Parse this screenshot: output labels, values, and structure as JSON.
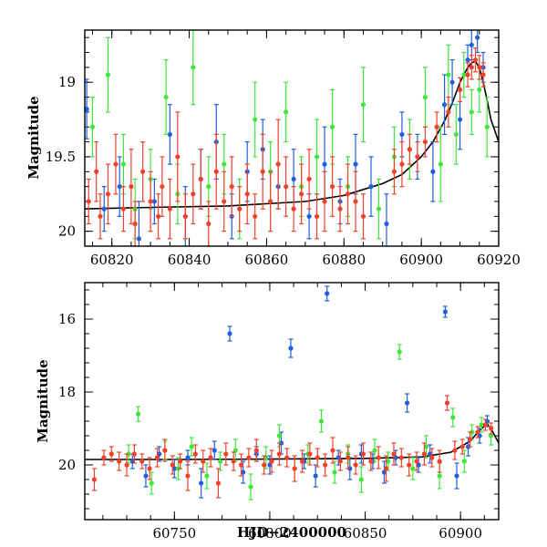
{
  "chart_data": [
    {
      "type": "scatter",
      "title": "",
      "xlabel": "",
      "ylabel": "Magnitude",
      "xlim": [
        60813,
        60920
      ],
      "ylim": [
        20.1,
        18.65
      ],
      "y_inverted": true,
      "x_ticks": [
        60820,
        60840,
        60860,
        60880,
        60900,
        60920
      ],
      "x_ticklabels": [
        "60820",
        "60840",
        "60860",
        "60880",
        "60900",
        "60920"
      ],
      "y_ticks": [
        19,
        19.5,
        20
      ],
      "y_ticklabels": [
        "19",
        "19.5",
        "20"
      ],
      "grid": false,
      "legend": "none",
      "colors": {
        "blue": "#1f5fe0",
        "green": "#3ee83a",
        "red": "#f2412a",
        "model": "#000000"
      },
      "model_curve": {
        "x": [
          60813,
          60830,
          60850,
          60870,
          60880,
          60890,
          60895,
          60900,
          60903,
          60906,
          60908,
          60910,
          60912,
          60913,
          60914,
          60915,
          60916,
          60917,
          60918,
          60920
        ],
        "y": [
          19.85,
          19.84,
          19.83,
          19.8,
          19.76,
          19.68,
          19.62,
          19.5,
          19.4,
          19.26,
          19.14,
          19.0,
          18.9,
          18.87,
          18.86,
          18.9,
          19.0,
          19.12,
          19.25,
          19.4
        ]
      },
      "series": [
        {
          "color": "blue",
          "x": [
            60813.5,
            60818,
            60822,
            60827,
            60831,
            60835,
            60839,
            60843,
            60847,
            60851,
            60855,
            60859,
            60863,
            60867,
            60871,
            60875,
            60879,
            60883,
            60887,
            60891,
            60895,
            60899,
            60903,
            60906,
            60908,
            60910,
            60912,
            60913,
            60914.5,
            60916
          ],
          "y": [
            19.18,
            19.85,
            19.7,
            20.05,
            19.8,
            19.35,
            19.9,
            19.65,
            19.4,
            19.9,
            19.6,
            19.45,
            19.7,
            19.65,
            19.9,
            19.55,
            19.8,
            19.55,
            19.7,
            19.95,
            19.35,
            19.5,
            19.6,
            19.15,
            19.0,
            19.25,
            18.85,
            18.75,
            18.7,
            18.9
          ],
          "err": [
            0.2,
            0.15,
            0.2,
            0.25,
            0.15,
            0.2,
            0.2,
            0.2,
            0.25,
            0.15,
            0.2,
            0.2,
            0.15,
            0.2,
            0.15,
            0.25,
            0.15,
            0.2,
            0.2,
            0.2,
            0.15,
            0.15,
            0.2,
            0.2,
            0.15,
            0.2,
            0.1,
            0.1,
            0.1,
            0.1
          ]
        },
        {
          "color": "green",
          "x": [
            60815,
            60819,
            60823,
            60826,
            60830,
            60834,
            60837,
            60841,
            60845,
            60849,
            60853,
            60857,
            60861,
            60865,
            60869,
            60873,
            60877,
            60881,
            60885,
            60889,
            60893,
            60897,
            60901,
            60905,
            60907,
            60909,
            60911,
            60913,
            60915,
            60917
          ],
          "y": [
            19.3,
            18.95,
            19.55,
            19.85,
            19.65,
            19.1,
            19.75,
            18.9,
            19.7,
            19.55,
            19.85,
            19.25,
            19.6,
            19.2,
            19.7,
            19.5,
            19.3,
            19.7,
            19.15,
            19.85,
            19.5,
            19.45,
            19.1,
            19.55,
            18.95,
            19.35,
            18.95,
            19.2,
            19.05,
            19.3
          ],
          "err": [
            0.2,
            0.25,
            0.2,
            0.2,
            0.2,
            0.25,
            0.2,
            0.25,
            0.2,
            0.2,
            0.2,
            0.25,
            0.2,
            0.2,
            0.2,
            0.25,
            0.25,
            0.2,
            0.25,
            0.2,
            0.2,
            0.2,
            0.2,
            0.25,
            0.2,
            0.2,
            0.15,
            0.15,
            0.15,
            0.2
          ]
        },
        {
          "color": "red",
          "x": [
            60814,
            60816,
            60817,
            60819,
            60821,
            60823,
            60825,
            60826,
            60828,
            60830,
            60832,
            60833,
            60835,
            60837,
            60839,
            60841,
            60843,
            60845,
            60847,
            60849,
            60851,
            60853,
            60855,
            60857,
            60859,
            60861,
            60863,
            60865,
            60867,
            60869,
            60871,
            60873,
            60875,
            60877,
            60879,
            60881,
            60883,
            60885,
            60893,
            60895,
            60897,
            60899,
            60901,
            60904,
            60907,
            60910,
            60912,
            60913,
            60914,
            60915,
            60916
          ],
          "y": [
            19.8,
            19.6,
            19.9,
            19.75,
            19.55,
            19.85,
            19.7,
            19.95,
            19.6,
            19.8,
            19.9,
            19.7,
            19.85,
            19.5,
            19.9,
            19.75,
            19.65,
            19.95,
            19.6,
            19.8,
            19.7,
            19.85,
            19.75,
            19.9,
            19.6,
            19.8,
            19.55,
            19.7,
            19.85,
            19.75,
            19.65,
            19.9,
            19.8,
            19.7,
            19.85,
            19.75,
            19.8,
            19.9,
            19.6,
            19.55,
            19.45,
            19.5,
            19.4,
            19.3,
            19.2,
            19.05,
            18.95,
            18.9,
            18.85,
            18.9,
            18.95
          ],
          "err": [
            0.15,
            0.2,
            0.15,
            0.2,
            0.2,
            0.15,
            0.25,
            0.15,
            0.2,
            0.2,
            0.15,
            0.2,
            0.2,
            0.3,
            0.15,
            0.2,
            0.2,
            0.15,
            0.25,
            0.2,
            0.2,
            0.15,
            0.2,
            0.15,
            0.25,
            0.2,
            0.3,
            0.2,
            0.15,
            0.2,
            0.2,
            0.15,
            0.2,
            0.2,
            0.15,
            0.2,
            0.2,
            0.15,
            0.15,
            0.15,
            0.1,
            0.1,
            0.1,
            0.1,
            0.1,
            0.08,
            0.08,
            0.08,
            0.08,
            0.08,
            0.08
          ]
        }
      ]
    },
    {
      "type": "scatter",
      "title": "",
      "xlabel": "HJD−2400000",
      "ylabel": "Magnitude",
      "xlim": [
        60703,
        60920
      ],
      "ylim": [
        21.5,
        15.0
      ],
      "y_inverted": true,
      "x_ticks": [
        60750,
        60800,
        60850,
        60900
      ],
      "x_ticklabels": [
        "60750",
        "60800",
        "60850",
        "60900"
      ],
      "y_ticks": [
        16,
        18,
        20
      ],
      "y_ticklabels": [
        "16",
        "18",
        "20"
      ],
      "grid": false,
      "legend": "none",
      "colors": {
        "blue": "#1f5fe0",
        "green": "#3ee83a",
        "red": "#f2412a",
        "model": "#000000"
      },
      "model_curve": {
        "x": [
          60703,
          60750,
          60800,
          60850,
          60880,
          60895,
          60905,
          60910,
          60914,
          60917,
          60920
        ],
        "y": [
          19.85,
          19.85,
          19.84,
          19.82,
          19.78,
          19.65,
          19.35,
          19.05,
          18.87,
          19.1,
          19.4
        ]
      },
      "series": [
        {
          "color": "blue",
          "x": [
            60728,
            60735,
            60742,
            60750,
            60757,
            60764,
            60771,
            60779,
            60786,
            60793,
            60800,
            60806,
            60811,
            60818,
            60824,
            60830,
            60836,
            60842,
            60848,
            60854,
            60860,
            60866,
            60872,
            60878,
            60884,
            60892,
            60898,
            60904,
            60910,
            60914
          ],
          "y": [
            19.9,
            20.3,
            19.7,
            20.1,
            19.8,
            20.5,
            19.6,
            16.4,
            20.2,
            19.7,
            20.0,
            19.4,
            16.8,
            19.9,
            20.3,
            15.3,
            19.8,
            20.1,
            19.7,
            19.9,
            20.2,
            19.8,
            18.3,
            20.0,
            19.7,
            15.8,
            20.3,
            19.5,
            19.2,
            18.8
          ],
          "err": [
            0.2,
            0.3,
            0.2,
            0.25,
            0.2,
            0.4,
            0.25,
            0.2,
            0.3,
            0.2,
            0.25,
            0.3,
            0.25,
            0.2,
            0.3,
            0.2,
            0.2,
            0.3,
            0.25,
            0.2,
            0.3,
            0.2,
            0.25,
            0.2,
            0.25,
            0.15,
            0.35,
            0.25,
            0.2,
            0.15
          ]
        },
        {
          "color": "green",
          "x": [
            60726,
            60731,
            60738,
            60745,
            60752,
            60759,
            60767,
            60774,
            60782,
            60790,
            60798,
            60805,
            60813,
            60820,
            60827,
            60834,
            60841,
            60848,
            60855,
            60862,
            60868,
            60875,
            60882,
            60889,
            60896,
            60902,
            60906,
            60911,
            60916
          ],
          "y": [
            19.7,
            18.6,
            20.5,
            19.6,
            20.1,
            19.5,
            20.3,
            19.9,
            19.6,
            20.6,
            19.8,
            19.2,
            20.1,
            19.7,
            18.8,
            20.2,
            19.7,
            20.4,
            19.6,
            19.9,
            16.9,
            20.1,
            19.5,
            20.3,
            18.7,
            19.9,
            19.1,
            18.9,
            19.2
          ],
          "err": [
            0.25,
            0.2,
            0.3,
            0.25,
            0.3,
            0.25,
            0.35,
            0.25,
            0.3,
            0.35,
            0.3,
            0.3,
            0.35,
            0.25,
            0.3,
            0.3,
            0.25,
            0.35,
            0.3,
            0.25,
            0.2,
            0.3,
            0.3,
            0.35,
            0.25,
            0.3,
            0.2,
            0.2,
            0.25
          ]
        },
        {
          "color": "red",
          "x": [
            60708,
            60713,
            60717,
            60721,
            60725,
            60729,
            60733,
            60737,
            60741,
            60745,
            60749,
            60753,
            60757,
            60761,
            60765,
            60769,
            60773,
            60777,
            60781,
            60785,
            60789,
            60793,
            60797,
            60801,
            60805,
            60809,
            60813,
            60817,
            60821,
            60825,
            60829,
            60833,
            60837,
            60841,
            60845,
            60849,
            60853,
            60857,
            60861,
            60865,
            60869,
            60873,
            60877,
            60881,
            60885,
            60889,
            60893,
            60897,
            60901,
            60905,
            60909,
            60913,
            60916
          ],
          "y": [
            20.4,
            19.8,
            19.7,
            19.9,
            20.0,
            19.7,
            19.9,
            20.1,
            19.8,
            19.6,
            20.0,
            19.9,
            20.3,
            19.7,
            19.9,
            19.8,
            20.5,
            19.7,
            19.9,
            20.0,
            19.8,
            19.6,
            20.0,
            19.9,
            19.7,
            19.8,
            20.1,
            19.9,
            19.7,
            19.8,
            20.0,
            19.6,
            19.9,
            19.8,
            20.0,
            19.7,
            19.9,
            19.8,
            20.1,
            19.7,
            19.8,
            20.0,
            19.9,
            19.7,
            19.8,
            19.9,
            18.3,
            19.6,
            19.5,
            19.3,
            19.1,
            18.9,
            19.0
          ],
          "err": [
            0.3,
            0.2,
            0.2,
            0.25,
            0.3,
            0.25,
            0.2,
            0.3,
            0.25,
            0.3,
            0.25,
            0.2,
            0.4,
            0.25,
            0.3,
            0.25,
            0.4,
            0.3,
            0.25,
            0.3,
            0.25,
            0.3,
            0.25,
            0.3,
            0.3,
            0.25,
            0.35,
            0.3,
            0.3,
            0.25,
            0.3,
            0.35,
            0.25,
            0.3,
            0.25,
            0.3,
            0.25,
            0.3,
            0.35,
            0.3,
            0.25,
            0.3,
            0.25,
            0.3,
            0.25,
            0.3,
            0.2,
            0.25,
            0.2,
            0.2,
            0.15,
            0.15,
            0.15
          ]
        }
      ]
    }
  ]
}
